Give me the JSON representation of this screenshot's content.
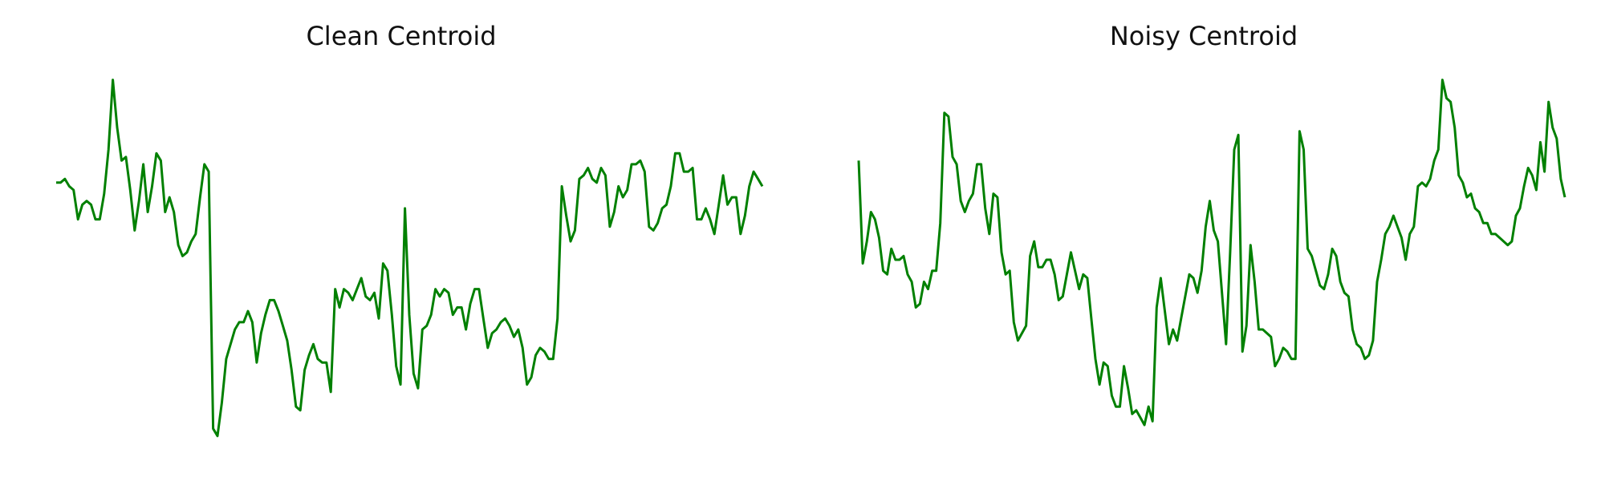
{
  "colors": {
    "line": "#008000",
    "background": "#ffffff"
  },
  "chart_data": [
    {
      "type": "line",
      "title": "Clean Centroid",
      "xlabel": "",
      "ylabel": "",
      "axes_visible": false,
      "grid": false,
      "xlim": [
        0,
        143
      ],
      "ylim": [
        0,
        1
      ],
      "series": [
        {
          "color": "#008000",
          "values": [
            0.71,
            0.71,
            0.72,
            0.7,
            0.69,
            0.61,
            0.65,
            0.66,
            0.65,
            0.61,
            0.61,
            0.68,
            0.8,
            0.99,
            0.86,
            0.77,
            0.78,
            0.69,
            0.58,
            0.66,
            0.76,
            0.63,
            0.7,
            0.79,
            0.77,
            0.63,
            0.67,
            0.63,
            0.54,
            0.51,
            0.52,
            0.55,
            0.57,
            0.67,
            0.76,
            0.74,
            0.04,
            0.02,
            0.11,
            0.23,
            0.27,
            0.31,
            0.33,
            0.33,
            0.36,
            0.33,
            0.22,
            0.3,
            0.35,
            0.39,
            0.39,
            0.36,
            0.32,
            0.28,
            0.2,
            0.1,
            0.09,
            0.2,
            0.24,
            0.27,
            0.23,
            0.22,
            0.22,
            0.14,
            0.42,
            0.37,
            0.42,
            0.41,
            0.39,
            0.42,
            0.45,
            0.4,
            0.39,
            0.41,
            0.34,
            0.49,
            0.47,
            0.35,
            0.21,
            0.16,
            0.64,
            0.35,
            0.19,
            0.15,
            0.31,
            0.32,
            0.35,
            0.42,
            0.4,
            0.42,
            0.41,
            0.35,
            0.37,
            0.37,
            0.31,
            0.38,
            0.42,
            0.42,
            0.34,
            0.26,
            0.3,
            0.31,
            0.33,
            0.34,
            0.32,
            0.29,
            0.31,
            0.26,
            0.16,
            0.18,
            0.24,
            0.26,
            0.25,
            0.23,
            0.23,
            0.34,
            0.7,
            0.62,
            0.55,
            0.58,
            0.72,
            0.73,
            0.75,
            0.72,
            0.71,
            0.75,
            0.73,
            0.59,
            0.63,
            0.7,
            0.67,
            0.69,
            0.76,
            0.76,
            0.77,
            0.74,
            0.59,
            0.58,
            0.6,
            0.64,
            0.65,
            0.7,
            0.79,
            0.79,
            0.74,
            0.74,
            0.75,
            0.61,
            0.61,
            0.64,
            0.61,
            0.57,
            0.65,
            0.73,
            0.65,
            0.67,
            0.67,
            0.57,
            0.62,
            0.7,
            0.74,
            0.72,
            0.7
          ]
        }
      ]
    },
    {
      "type": "line",
      "title": "Noisy Centroid",
      "xlabel": "",
      "ylabel": "",
      "axes_visible": false,
      "grid": false,
      "xlim": [
        0,
        143
      ],
      "ylim": [
        0,
        1
      ],
      "series": [
        {
          "color": "#008000",
          "values": [
            0.77,
            0.49,
            0.55,
            0.63,
            0.61,
            0.56,
            0.47,
            0.46,
            0.53,
            0.5,
            0.5,
            0.51,
            0.46,
            0.44,
            0.37,
            0.38,
            0.44,
            0.42,
            0.47,
            0.47,
            0.6,
            0.9,
            0.89,
            0.78,
            0.76,
            0.66,
            0.63,
            0.66,
            0.68,
            0.76,
            0.76,
            0.64,
            0.57,
            0.68,
            0.67,
            0.52,
            0.46,
            0.47,
            0.33,
            0.28,
            0.3,
            0.32,
            0.51,
            0.55,
            0.48,
            0.48,
            0.5,
            0.5,
            0.46,
            0.39,
            0.4,
            0.46,
            0.52,
            0.47,
            0.42,
            0.46,
            0.45,
            0.34,
            0.23,
            0.16,
            0.22,
            0.21,
            0.13,
            0.1,
            0.1,
            0.21,
            0.15,
            0.08,
            0.09,
            0.07,
            0.05,
            0.1,
            0.06,
            0.37,
            0.45,
            0.36,
            0.27,
            0.31,
            0.28,
            0.34,
            0.4,
            0.46,
            0.45,
            0.41,
            0.47,
            0.59,
            0.66,
            0.58,
            0.55,
            0.41,
            0.27,
            0.52,
            0.8,
            0.84,
            0.25,
            0.32,
            0.54,
            0.44,
            0.31,
            0.31,
            0.3,
            0.29,
            0.21,
            0.23,
            0.26,
            0.25,
            0.23,
            0.23,
            0.85,
            0.8,
            0.53,
            0.51,
            0.47,
            0.43,
            0.42,
            0.46,
            0.53,
            0.51,
            0.44,
            0.41,
            0.4,
            0.31,
            0.27,
            0.26,
            0.23,
            0.24,
            0.28,
            0.44,
            0.5,
            0.57,
            0.59,
            0.62,
            0.59,
            0.56,
            0.5,
            0.57,
            0.59,
            0.7,
            0.71,
            0.7,
            0.72,
            0.77,
            0.8,
            0.99,
            0.94,
            0.93,
            0.86,
            0.73,
            0.71,
            0.67,
            0.68,
            0.64,
            0.63,
            0.6,
            0.6,
            0.57,
            0.57,
            0.56,
            0.55,
            0.54,
            0.55,
            0.62,
            0.64,
            0.7,
            0.75,
            0.73,
            0.69,
            0.82,
            0.74,
            0.93,
            0.86,
            0.83,
            0.72,
            0.67
          ]
        }
      ]
    }
  ]
}
